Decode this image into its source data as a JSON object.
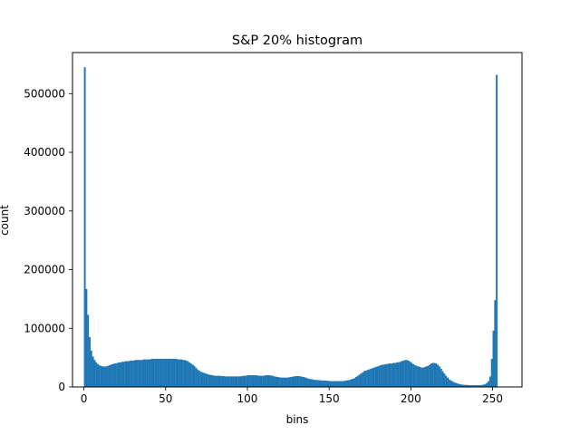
{
  "chart_data": {
    "type": "bar",
    "title": "S&P 20% histogram",
    "xlabel": "bins",
    "ylabel": "count",
    "xlim": [
      -7,
      268
    ],
    "ylim": [
      0,
      570000
    ],
    "xticks": [
      0,
      50,
      100,
      150,
      200,
      250
    ],
    "yticks": [
      0,
      100000,
      200000,
      300000,
      400000,
      500000
    ],
    "grid": false,
    "bin_width": 1,
    "series_color": "#1f77b4",
    "bins_start": 0,
    "values": [
      545000,
      167000,
      123000,
      85000,
      62000,
      52000,
      46000,
      42000,
      39000,
      37000,
      36000,
      35000,
      35000,
      35000,
      36000,
      37000,
      38000,
      39000,
      40000,
      40000,
      41000,
      42000,
      42000,
      43000,
      43000,
      44000,
      44000,
      44000,
      45000,
      45000,
      45000,
      46000,
      46000,
      46000,
      46000,
      46000,
      47000,
      47000,
      47000,
      47000,
      47000,
      48000,
      48000,
      48000,
      48000,
      48000,
      48000,
      48000,
      48000,
      48000,
      48000,
      48000,
      48000,
      48000,
      48000,
      48000,
      48000,
      47000,
      47000,
      47000,
      46000,
      46000,
      45000,
      44000,
      42000,
      40000,
      38000,
      36000,
      33000,
      30000,
      28000,
      26000,
      25000,
      24000,
      23000,
      22000,
      21000,
      20500,
      20000,
      19500,
      19000,
      19000,
      19000,
      19000,
      18500,
      18500,
      18000,
      18000,
      18000,
      18000,
      18000,
      18000,
      18000,
      18000,
      18000,
      18000,
      18500,
      19000,
      19000,
      19500,
      20000,
      20000,
      20000,
      20000,
      20000,
      20000,
      19500,
      19000,
      19000,
      19000,
      19500,
      20000,
      20000,
      20000,
      19500,
      19000,
      18000,
      17500,
      17000,
      16500,
      16000,
      16000,
      16000,
      16000,
      16000,
      16500,
      17000,
      17500,
      18000,
      18500,
      18500,
      18500,
      18000,
      17500,
      17000,
      16000,
      15000,
      14000,
      13500,
      13000,
      12500,
      12000,
      12000,
      11500,
      11500,
      11000,
      11000,
      11000,
      10500,
      10500,
      10000,
      10000,
      10000,
      10000,
      10000,
      10000,
      10000,
      10000,
      10000,
      10500,
      11000,
      11500,
      12000,
      13000,
      14000,
      15000,
      17000,
      19000,
      21000,
      23000,
      25000,
      27000,
      28000,
      29000,
      30000,
      31000,
      32000,
      33000,
      34000,
      35000,
      36000,
      37000,
      38000,
      38000,
      39000,
      39000,
      40000,
      40000,
      40000,
      41000,
      41000,
      42000,
      42000,
      43000,
      44000,
      45000,
      46000,
      46000,
      45000,
      43000,
      41000,
      39000,
      37000,
      36000,
      35000,
      34000,
      33000,
      33000,
      34000,
      35000,
      36000,
      38000,
      40000,
      41000,
      41000,
      40000,
      38000,
      35000,
      31000,
      27000,
      23000,
      19000,
      16000,
      13000,
      11000,
      9500,
      8000,
      7000,
      6000,
      5000,
      4500,
      4000,
      3500,
      3500,
      3500,
      3000,
      3000,
      3000,
      3000,
      3000,
      3000,
      3000,
      3000,
      3500,
      4000,
      5000,
      7000,
      10000,
      18000,
      48000,
      96000,
      148000,
      532000
    ]
  }
}
